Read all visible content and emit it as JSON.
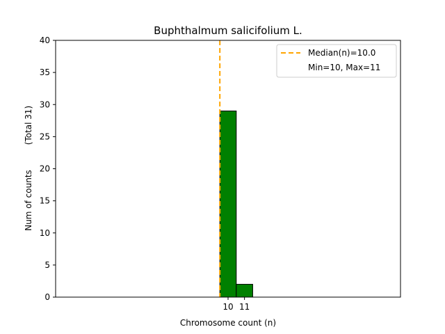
{
  "chart_data": {
    "type": "bar",
    "title": "Buphthalmum salicifolium L.",
    "xlabel": "Chromosome count (n)",
    "ylabel": "Num of counts",
    "ylabel_secondary": "(Total 31)",
    "x": [
      10,
      11
    ],
    "x_tick_labels": [
      "10",
      "11"
    ],
    "values": [
      29,
      2
    ],
    "ylim": [
      0,
      40
    ],
    "xlim": [
      0,
      21
    ],
    "y_ticks": [
      0,
      5,
      10,
      15,
      20,
      25,
      30,
      35,
      40
    ],
    "baseline_range": [
      0,
      15
    ],
    "median": 10.0,
    "legend": {
      "position": "top-right",
      "median_label": "Median(n)=10.0",
      "range_label": "Min=10, Max=11"
    },
    "grid": false,
    "colors": {
      "bar_fill": "#008000",
      "bar_edge": "#000000",
      "median_line": "#FFA500"
    }
  }
}
